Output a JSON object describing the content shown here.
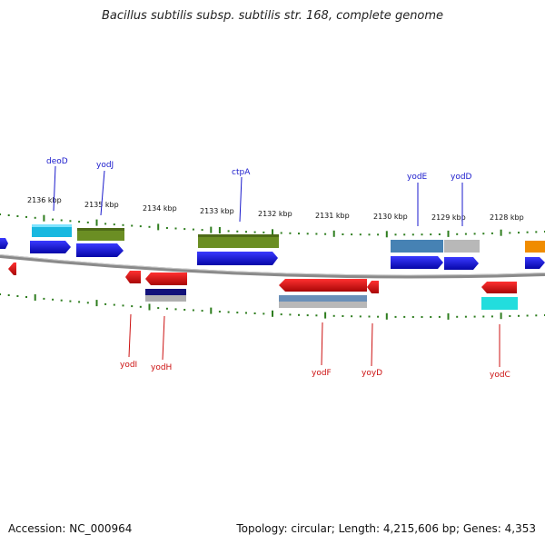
{
  "title": "Bacillus subtilis subsp. subtilis str. 168, complete genome",
  "footer": {
    "accession": "Accession: NC_000964",
    "summary": "Topology: circular; Length: 4,215,606 bp; Genes: 4,353"
  },
  "colors": {
    "backbone": "#8a8a8a",
    "tick": "#2e7d1e",
    "fwd_label": "#1a1acc",
    "rev_label": "#cc1111",
    "cds_blue": "#1010ee",
    "cds_red": "#ee1010"
  },
  "scale": {
    "ticks": [
      "2136 kbp",
      "2135 kbp",
      "2134 kbp",
      "2133 kbp",
      "2132 kbp",
      "2131 kbp",
      "2130 kbp",
      "2129 kbp",
      "2128 kbp"
    ]
  },
  "forward_genes": [
    {
      "label": "deoD",
      "feature_color": "#19b8e0",
      "cds_color": "#1010ee"
    },
    {
      "label": "yodJ",
      "feature_color": "#6b8e23",
      "cds_color": "#1010ee"
    },
    {
      "label": "ctpA",
      "feature_color": "#6b8e23",
      "cds_color": "#1010ee"
    },
    {
      "label": "yodE",
      "feature_color": "#4682b4",
      "cds_color": "#1010ee"
    },
    {
      "label": "yodD",
      "feature_color": "#b8b8b8",
      "cds_color": "#1010ee"
    }
  ],
  "reverse_genes": [
    {
      "label": "yodI",
      "feature_color": "",
      "cds_color": "#ee1010"
    },
    {
      "label": "yodH",
      "feature_color": "#12127a",
      "cds_color": "#ee1010"
    },
    {
      "label": "yodF",
      "feature_color": "#6a8fb8",
      "cds_color": "#ee1010"
    },
    {
      "label": "yoyD",
      "feature_color": "",
      "cds_color": "#ee1010"
    },
    {
      "label": "yodC",
      "feature_color": "#22dddd",
      "cds_color": "#ee1010"
    }
  ]
}
